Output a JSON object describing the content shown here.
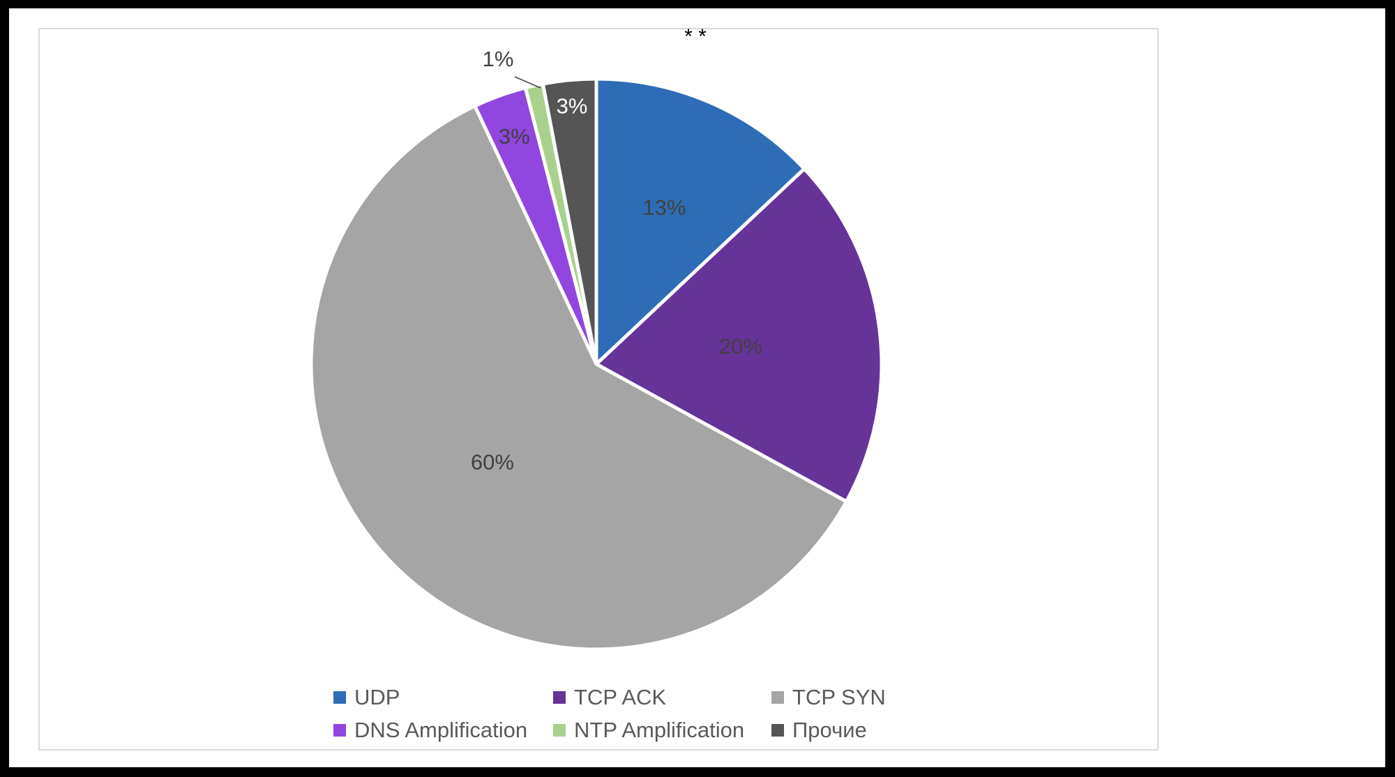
{
  "chart_data": {
    "type": "pie",
    "title": "* *",
    "categories": [
      "UDP",
      "TCP ACK",
      "TCP SYN",
      "DNS Amplification",
      "NTP Amplification",
      "Прочие"
    ],
    "values": [
      13,
      20,
      60,
      3,
      1,
      3
    ],
    "data_labels": [
      "13%",
      "20%",
      "60%",
      "3%",
      "1%",
      "3%"
    ],
    "colors": [
      "#2E6DB5",
      "#663399",
      "#A5A5A5",
      "#9146E0",
      "#A9D18E",
      "#555555"
    ],
    "label_colors": [
      "#404040",
      "#404040",
      "#404040",
      "#404040",
      "#404040",
      "#ffffff"
    ],
    "legend_position": "bottom",
    "start_angle_deg": 0,
    "direction": "clockwise"
  }
}
